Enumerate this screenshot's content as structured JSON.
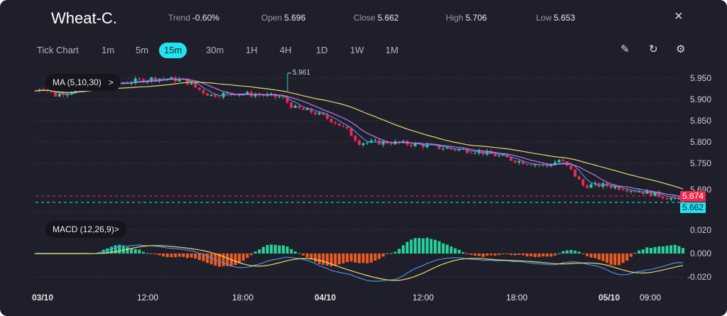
{
  "header": {
    "symbol": "Wheat-C.",
    "trend_label": "Trend",
    "trend": "-0.60%",
    "open_label": "Open",
    "open": "5.696",
    "close_label": "Close",
    "close": "5.662",
    "high_label": "High",
    "high": "5.706",
    "low_label": "Low",
    "low": "5.653",
    "close_icon": "×"
  },
  "timeframes": [
    "Tick Chart",
    "1m",
    "5m",
    "15m",
    "30m",
    "1H",
    "4H",
    "1D",
    "1W",
    "1M"
  ],
  "active_timeframe": "15m",
  "tools": {
    "draw": "✎",
    "reset": "↻",
    "settings": "⚙"
  },
  "indicators": {
    "ma": "MA (5,10,30)",
    "ma_arrow": ">",
    "macd": "MACD (12,26,9)",
    "macd_arrow": ">"
  },
  "price_axis": [
    "5.950",
    "5.900",
    "5.850",
    "5.800",
    "5.750",
    "5.690"
  ],
  "macd_axis": [
    "0.020",
    "0.000",
    "-0.020"
  ],
  "time_axis": [
    "03/10",
    "12:00",
    "18:00",
    "04/10",
    "12:00",
    "18:00",
    "05/10",
    "09:00"
  ],
  "price_tags": {
    "prev": "5.674",
    "last": "5.662",
    "high_marker": "5.961"
  },
  "colors": {
    "up": "#25d39a",
    "down": "#f0284d",
    "accent": "#22e3f0",
    "ma5": "#4a8fe8",
    "ma10": "#c678e0",
    "ma30": "#e7d86a",
    "macd_neg": "#f05a1e"
  },
  "chart_data": {
    "type": "candlestick",
    "interval": "15m",
    "ylim": [
      5.64,
      5.965
    ],
    "price_path": [
      [
        0,
        5.92
      ],
      [
        0.01,
        5.93
      ],
      [
        0.03,
        5.91
      ],
      [
        0.055,
        5.92
      ],
      [
        0.09,
        5.935
      ],
      [
        0.14,
        5.94
      ],
      [
        0.185,
        5.95
      ],
      [
        0.23,
        5.945
      ],
      [
        0.25,
        5.925
      ],
      [
        0.27,
        5.91
      ],
      [
        0.31,
        5.915
      ],
      [
        0.35,
        5.91
      ],
      [
        0.38,
        5.905
      ],
      [
        0.4,
        5.88
      ],
      [
        0.43,
        5.87
      ],
      [
        0.46,
        5.85
      ],
      [
        0.48,
        5.83
      ],
      [
        0.5,
        5.8
      ],
      [
        0.55,
        5.8
      ],
      [
        0.59,
        5.795
      ],
      [
        0.64,
        5.785
      ],
      [
        0.68,
        5.78
      ],
      [
        0.71,
        5.77
      ],
      [
        0.75,
        5.755
      ],
      [
        0.79,
        5.745
      ],
      [
        0.81,
        5.76
      ],
      [
        0.83,
        5.73
      ],
      [
        0.845,
        5.7
      ],
      [
        0.88,
        5.7
      ],
      [
        0.92,
        5.69
      ],
      [
        0.955,
        5.68
      ],
      [
        1,
        5.662
      ]
    ],
    "macd_ylim": [
      -0.03,
      0.03
    ]
  }
}
